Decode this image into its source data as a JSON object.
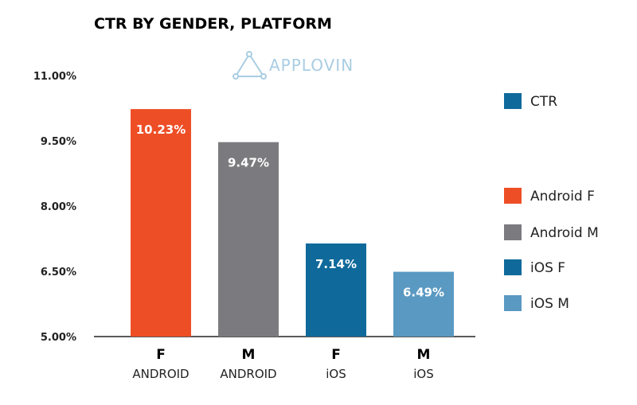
{
  "chart_data": {
    "type": "bar",
    "title": "CTR BY GENDER, PLATFORM",
    "watermark": "APPLOVIN",
    "categories": [
      {
        "main": "F",
        "sub": "ANDROID"
      },
      {
        "main": "M",
        "sub": "ANDROID"
      },
      {
        "main": "F",
        "sub": "iOS"
      },
      {
        "main": "M",
        "sub": "iOS"
      }
    ],
    "values": [
      10.23,
      9.47,
      7.14,
      6.49
    ],
    "value_labels": [
      "10.23%",
      "9.47%",
      "7.14%",
      "6.49%"
    ],
    "colors": [
      "#ee4e26",
      "#7b7b7f",
      "#0f6a9b",
      "#5a99c2"
    ],
    "ylim": [
      5.0,
      11.0
    ],
    "yticks": [
      5.0,
      6.5,
      8.0,
      9.5,
      11.0
    ],
    "ytick_labels": [
      "5.00%",
      "6.50%",
      "8.00%",
      "9.50%",
      "11.00%"
    ],
    "xlabel": "",
    "ylabel": "",
    "grid": false,
    "legend_position": "right",
    "legend": [
      {
        "label": "CTR",
        "color": "#0f6a9b"
      },
      {
        "label": "Android F",
        "color": "#ee4e26"
      },
      {
        "label": "Android M",
        "color": "#7b7b7f"
      },
      {
        "label": "iOS F",
        "color": "#0f6a9b"
      },
      {
        "label": "iOS M",
        "color": "#5a99c2"
      }
    ]
  }
}
